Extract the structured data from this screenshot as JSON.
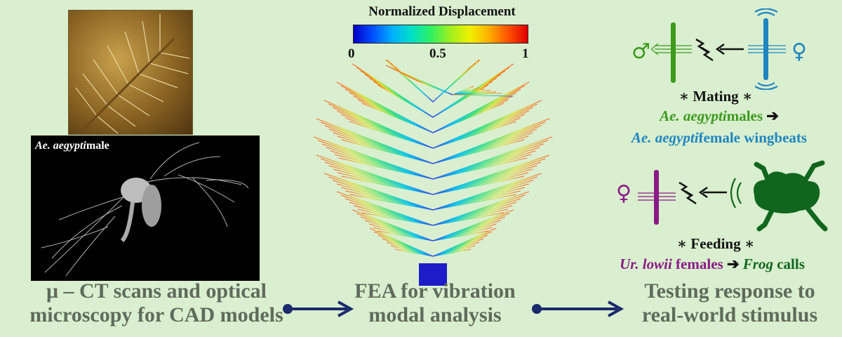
{
  "panels": {
    "left": {
      "ct_label_species": "Ae. aegypti",
      "ct_label_sex": "male",
      "caption_line1": "μ – CT scans and optical",
      "caption_line2": "microscopy for CAD models"
    },
    "center": {
      "legend_title": "Normalized Displacement",
      "colorbar": {
        "min_label": "0",
        "mid_label": "0.5",
        "max_label": "1"
      },
      "caption_line1": "FEA for vibration",
      "caption_line2": "modal analysis"
    },
    "right": {
      "mating": {
        "title": "∗ Mating ∗",
        "male_symbol": "♂",
        "female_symbol": "♀",
        "line1_species": "Ae. aegypti",
        "line1_rest": "males",
        "line1_arrow": "➔",
        "line2_species": "Ae. aegypti",
        "line2_rest": "female wingbeats"
      },
      "feeding": {
        "title": "∗ Feeding ∗",
        "female_symbol": "♀",
        "line_species": "Ur. lowii",
        "line_rest": "females",
        "line_arrow": "➔",
        "line_target": "Frog",
        "line_tail": "calls"
      },
      "caption_line1": "Testing response to",
      "caption_line2": "real-world stimulus"
    }
  },
  "colors": {
    "arrow": "#1a2a6c",
    "male": "#3c9a1c",
    "female_blue": "#1f86c0",
    "female_purple": "#8a1a86",
    "frog": "#11661d"
  }
}
